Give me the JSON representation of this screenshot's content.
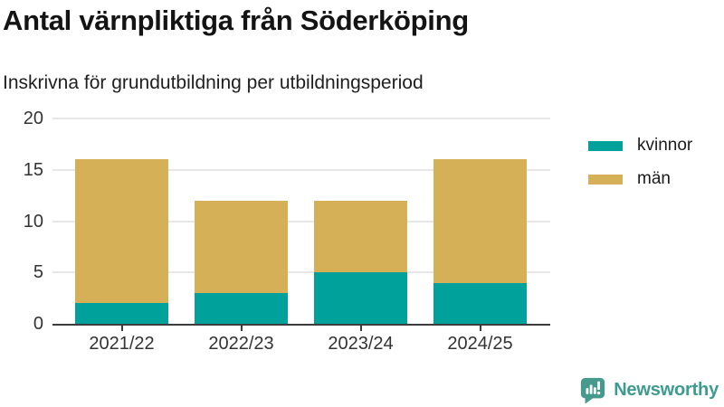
{
  "chart_data": {
    "type": "bar",
    "stacked": true,
    "title": "Antal värnpliktiga från Söderköping",
    "subtitle": "Inskrivna för grundutbildning per utbildningsperiod",
    "categories": [
      "2021/22",
      "2022/23",
      "2023/24",
      "2024/25"
    ],
    "series": [
      {
        "name": "kvinnor",
        "color": "#00a19a",
        "values": [
          2,
          3,
          5,
          4
        ]
      },
      {
        "name": "män",
        "color": "#d5b056",
        "values": [
          14,
          9,
          7,
          12
        ]
      }
    ],
    "totals": [
      16,
      12,
      12,
      16
    ],
    "xlabel": "",
    "ylabel": "",
    "ylim": [
      0,
      20
    ],
    "yticks": [
      0,
      5,
      10,
      15,
      20
    ],
    "grid": true,
    "legend_position": "right"
  },
  "branding": {
    "logo_text": "Newsworthy",
    "logo_color": "#3d9b8f",
    "logo_icon": "bar-chart-speech-bubble-icon"
  },
  "colors": {
    "axis": "#3c3c3c",
    "gridline": "#e7e7e7",
    "axis_text": "#333333",
    "title_text": "#141414"
  }
}
